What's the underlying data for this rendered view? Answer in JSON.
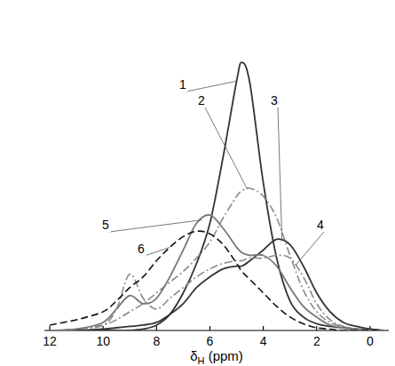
{
  "chart_data": {
    "type": "line",
    "x_label": "δH (ppm)",
    "x": [
      12,
      11,
      10,
      9.5,
      9,
      8.5,
      8,
      7.5,
      7,
      6.5,
      6,
      5.5,
      5,
      4.8,
      4.5,
      4,
      3.5,
      3,
      2.5,
      2,
      1.5,
      1,
      0.5,
      0,
      -0.5
    ],
    "xlim": [
      12.2,
      -0.7
    ],
    "xticks": [
      12,
      10,
      8,
      6,
      4,
      2,
      0
    ],
    "ylim": [
      0,
      105
    ],
    "tick_labels": "x",
    "grid": false,
    "series": [
      {
        "name": "1",
        "color": "#333333",
        "line_style": "solid",
        "values": [
          0,
          0,
          0,
          0,
          0,
          0.5,
          2,
          6,
          14,
          25,
          40,
          65,
          93,
          100,
          92,
          55,
          27,
          11,
          5,
          2.5,
          1.5,
          1,
          0.5,
          0.3,
          0
        ]
      },
      {
        "name": "2",
        "color": "#8a8a8a",
        "line_style": "dashdot",
        "values": [
          0,
          0.5,
          2,
          4,
          7,
          10,
          14,
          18,
          22,
          27,
          33,
          42,
          50,
          52,
          53,
          50,
          42,
          28,
          15,
          7,
          3,
          1.5,
          0.5,
          0.2,
          0
        ]
      },
      {
        "name": "3",
        "color": "#333333",
        "line_style": "solid",
        "values": [
          0,
          0,
          0.5,
          1,
          1.5,
          2,
          3,
          6,
          10,
          16,
          20,
          23,
          24,
          24,
          26,
          30,
          34,
          32,
          24,
          14,
          7,
          3,
          1.5,
          0.5,
          0
        ]
      },
      {
        "name": "4",
        "color": "#8a8a8a",
        "line_style": "dashdot",
        "values": [
          0,
          0.5,
          2,
          8,
          21,
          12,
          8,
          12,
          16,
          20,
          23,
          25,
          26,
          26,
          27,
          27,
          28,
          27,
          20,
          10,
          4,
          1.5,
          0.5,
          0,
          0
        ]
      },
      {
        "name": "5",
        "color": "#777777",
        "line_style": "solid",
        "values": [
          0,
          0.5,
          3,
          8,
          13,
          10,
          12,
          20,
          30,
          40,
          43,
          38,
          31,
          29,
          28,
          28,
          24,
          16,
          9,
          5,
          2,
          1,
          0.5,
          0,
          0
        ]
      },
      {
        "name": "6",
        "color": "#111111",
        "line_style": "dashed",
        "values": [
          2,
          4,
          7,
          11,
          16,
          20,
          26,
          31,
          35,
          37,
          36,
          32,
          25,
          22,
          19,
          14,
          9,
          5,
          2.5,
          1,
          0.5,
          0,
          0,
          0,
          0
        ]
      }
    ]
  }
}
